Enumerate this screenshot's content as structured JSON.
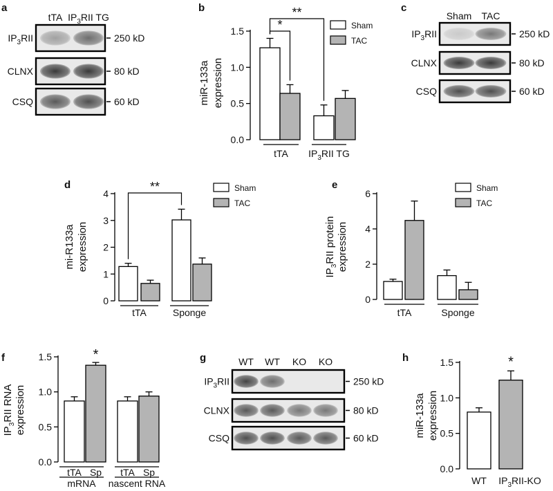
{
  "colors": {
    "sham": "#ffffff",
    "tac": "#b4b4b4",
    "band": "#2a2a2a",
    "axis": "#000000"
  },
  "blots": [
    {
      "panel": "a",
      "lanes": [
        "tTA",
        "IP3RII TG"
      ],
      "rows": [
        {
          "protein": "IP3RII",
          "size": "250 kD",
          "intensity": [
            0.35,
            0.6
          ]
        },
        {
          "protein": "CLNX",
          "size": "80 kD",
          "intensity": [
            0.85,
            0.85
          ]
        },
        {
          "protein": "CSQ",
          "size": "60 kD",
          "intensity": [
            0.7,
            0.75
          ]
        }
      ]
    },
    {
      "panel": "c",
      "lanes": [
        "Sham",
        "TAC"
      ],
      "rows": [
        {
          "protein": "IP3RII",
          "size": "250 kD",
          "intensity": [
            0.15,
            0.55
          ]
        },
        {
          "protein": "CLNX",
          "size": "80 kD",
          "intensity": [
            0.85,
            0.85
          ]
        },
        {
          "protein": "CSQ",
          "size": "60 kD",
          "intensity": [
            0.75,
            0.75
          ]
        }
      ]
    },
    {
      "panel": "g",
      "lanes": [
        "WT",
        "WT",
        "KO",
        "KO"
      ],
      "rows": [
        {
          "protein": "IP3RII",
          "size": "250 kD",
          "intensity": [
            0.8,
            0.6,
            0.0,
            0.0
          ]
        },
        {
          "protein": "CLNX",
          "size": "80 kD",
          "intensity": [
            0.7,
            0.7,
            0.55,
            0.55
          ]
        },
        {
          "protein": "CSQ",
          "size": "60 kD",
          "intensity": [
            0.75,
            0.75,
            0.7,
            0.7
          ]
        }
      ]
    }
  ],
  "chart_data": [
    {
      "panel": "b",
      "type": "bar",
      "ylabel": [
        "miR-133a",
        "expression"
      ],
      "ylim": [
        0,
        1.5
      ],
      "yticks": [
        "0.0",
        "0.5",
        "1.0",
        "1.5"
      ],
      "groups": [
        "tTA",
        "IP3RII TG"
      ],
      "series": [
        {
          "name": "Sham",
          "values": [
            1.27,
            0.33
          ],
          "errors": [
            0.13,
            0.15
          ]
        },
        {
          "name": "TAC",
          "values": [
            0.64,
            0.57
          ],
          "errors": [
            0.12,
            0.11
          ]
        }
      ],
      "legend": "top-right",
      "significance": [
        {
          "label": "*",
          "from": [
            0,
            0
          ],
          "to": [
            0,
            1
          ]
        },
        {
          "label": "**",
          "from": [
            0,
            0
          ],
          "to": [
            1,
            0
          ]
        }
      ]
    },
    {
      "panel": "d",
      "type": "bar",
      "ylabel": [
        "mi-R133a",
        "expression"
      ],
      "ylim": [
        0,
        4
      ],
      "yticks": [
        "0",
        "1",
        "2",
        "3",
        "4"
      ],
      "groups": [
        "tTA",
        "Sponge"
      ],
      "series": [
        {
          "name": "Sham",
          "values": [
            1.28,
            3.02
          ],
          "errors": [
            0.12,
            0.4
          ]
        },
        {
          "name": "TAC",
          "values": [
            0.65,
            1.37
          ],
          "errors": [
            0.12,
            0.23
          ]
        }
      ],
      "legend": "top-right",
      "significance": [
        {
          "label": "**",
          "from": [
            0,
            0
          ],
          "to": [
            1,
            0
          ]
        }
      ]
    },
    {
      "panel": "e",
      "type": "bar",
      "ylabel": [
        "IP3RII protein",
        "expression"
      ],
      "ylim": [
        0,
        6
      ],
      "yticks": [
        "0",
        "2",
        "4",
        "6"
      ],
      "groups": [
        "tTA",
        "Sponge"
      ],
      "series": [
        {
          "name": "Sham",
          "values": [
            1.02,
            1.35
          ],
          "errors": [
            0.13,
            0.32
          ]
        },
        {
          "name": "TAC",
          "values": [
            4.48,
            0.55
          ],
          "errors": [
            1.1,
            0.42
          ]
        }
      ],
      "legend": "top-right",
      "significance": []
    },
    {
      "panel": "f",
      "type": "bar",
      "ylabel": [
        "IP3RII RNA",
        "expression"
      ],
      "ylim": [
        0,
        1.5
      ],
      "yticks": [
        "0.0",
        "0.5",
        "1.0",
        "1.5"
      ],
      "groups": [
        "mRNA",
        "nascent RNA"
      ],
      "bar_labels": [
        [
          "tTA",
          "Sp"
        ],
        [
          "tTA",
          "Sp"
        ]
      ],
      "series": [
        {
          "name": "tTA",
          "values": [
            0.87,
            0.87
          ],
          "errors": [
            0.06,
            0.06
          ]
        },
        {
          "name": "Sp",
          "values": [
            1.38,
            0.94
          ],
          "errors": [
            0.04,
            0.06
          ]
        }
      ],
      "significance_star": [
        [
          0,
          1
        ]
      ]
    },
    {
      "panel": "h",
      "type": "bar",
      "ylabel": [
        "miR-133a",
        "expression"
      ],
      "ylim": [
        0,
        1.5
      ],
      "yticks": [
        "0.0",
        "0.5",
        "1.0",
        "1.5"
      ],
      "categories": [
        "WT",
        "IP3RII-KO"
      ],
      "values": [
        0.8,
        1.25
      ],
      "errors": [
        0.06,
        0.13
      ],
      "significance_star": [
        1
      ]
    }
  ]
}
